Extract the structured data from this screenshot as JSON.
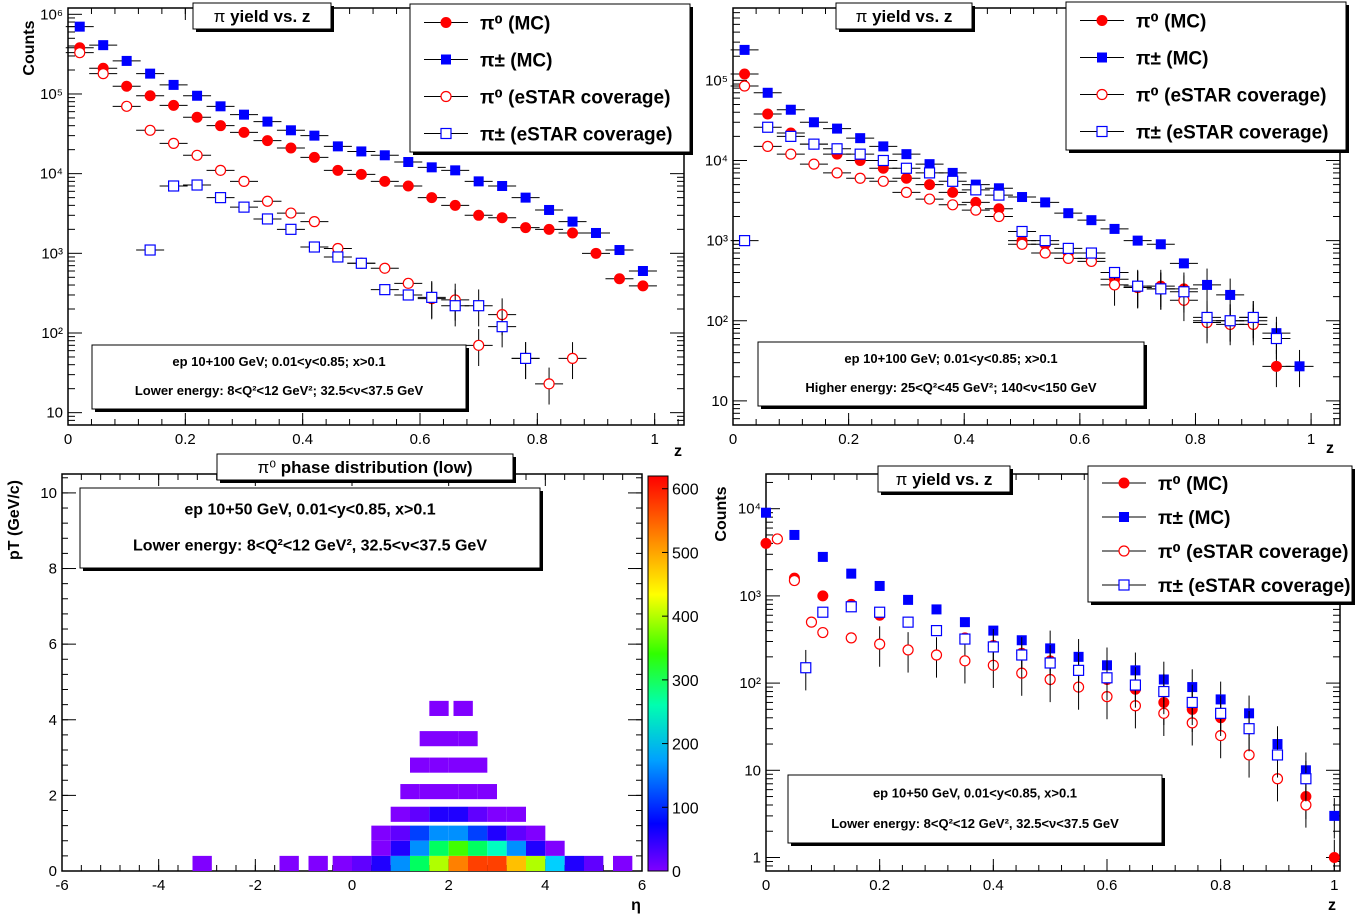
{
  "panels": [
    {
      "title_sym": "π",
      "title_text": " yield vs. z",
      "ylabel": "Counts",
      "xlabel": "z",
      "info_line1": "ep 10+100 GeV; 0.01<y<0.85; x>0.1",
      "info_line2": "Lower energy: 8<Q²<12 GeV²; 32.5<ν<37.5 GeV",
      "legend": [
        "π⁰ (MC)",
        "π± (MC)",
        "π⁰ (eSTAR coverage)",
        "π± (eSTAR coverage)"
      ]
    },
    {
      "title_sym": "π",
      "title_text": " yield vs. z",
      "ylabel": "",
      "xlabel": "z",
      "info_line1": "ep 10+100 GeV; 0.01<y<0.85; x>0.1",
      "info_line2": "Higher energy: 25<Q²<45 GeV²; 140<ν<150 GeV",
      "legend": [
        "π⁰ (MC)",
        "π± (MC)",
        "π⁰ (eSTAR coverage)",
        "π± (eSTAR coverage)"
      ]
    },
    {
      "title_sym": "π⁰",
      "title_text": " phase distribution (low)",
      "ylabel": "pT (GeV/c)",
      "xlabel": "η",
      "info_line1": "ep 10+50 GeV, 0.01<y<0.85, x>0.1",
      "info_line2": "Lower energy: 8<Q²<12 GeV², 32.5<ν<37.5 GeV"
    },
    {
      "title_sym": "π",
      "title_text": " yield vs. z",
      "ylabel": "Counts",
      "xlabel": "z",
      "info_line1": "ep 10+50 GeV, 0.01<y<0.85, x>0.1",
      "info_line2": "Lower energy: 8<Q²<12 GeV², 32.5<ν<37.5 GeV",
      "legend": [
        "π⁰ (MC)",
        "π± (MC)",
        "π⁰ (eSTAR coverage)",
        "π± (eSTAR coverage)"
      ]
    }
  ],
  "colors": {
    "red": "#ff0000",
    "blue": "#0000ff",
    "frame": "#000000"
  },
  "chart_data": [
    {
      "type": "scatter",
      "title": "π yield vs. z",
      "xlabel": "z",
      "ylabel": "Counts",
      "xlim": [
        0,
        1.05
      ],
      "ylim": [
        7,
        1200000
      ],
      "log_y": true,
      "x_ticks": [
        0,
        0.2,
        0.4,
        0.6,
        0.8,
        1
      ],
      "y_ticks": [
        10,
        100,
        1000,
        10000,
        100000,
        1000000
      ],
      "y_tick_labels": [
        "10",
        "10²",
        "10³",
        "10⁴",
        "10⁵",
        "10⁶"
      ],
      "series": [
        {
          "name": "π⁰ (MC)",
          "marker": "filled-circle",
          "color": "red",
          "x": [
            0.02,
            0.06,
            0.1,
            0.14,
            0.18,
            0.22,
            0.26,
            0.3,
            0.34,
            0.38,
            0.42,
            0.46,
            0.5,
            0.54,
            0.58,
            0.62,
            0.66,
            0.7,
            0.74,
            0.78,
            0.82,
            0.86,
            0.9,
            0.94,
            0.98
          ],
          "y": [
            380000,
            210000,
            125000,
            95000,
            72000,
            51000,
            40000,
            33000,
            26000,
            21000,
            16000,
            11000,
            9800,
            8000,
            7000,
            5000,
            4000,
            3000,
            2800,
            2100,
            2000,
            1800,
            1000,
            480,
            390
          ]
        },
        {
          "name": "π± (MC)",
          "marker": "filled-square",
          "color": "blue",
          "x": [
            0.02,
            0.06,
            0.1,
            0.14,
            0.18,
            0.22,
            0.26,
            0.3,
            0.34,
            0.38,
            0.42,
            0.46,
            0.5,
            0.54,
            0.58,
            0.62,
            0.66,
            0.7,
            0.74,
            0.78,
            0.82,
            0.86,
            0.9,
            0.94,
            0.98
          ],
          "y": [
            700000,
            410000,
            260000,
            180000,
            130000,
            95000,
            70000,
            55000,
            45000,
            35000,
            30000,
            22000,
            19000,
            17000,
            14000,
            12000,
            11000,
            8000,
            7000,
            5000,
            3500,
            2500,
            1800,
            1100,
            600
          ]
        },
        {
          "name": "π⁰ (eSTAR coverage)",
          "marker": "open-circle",
          "color": "red",
          "x": [
            0.02,
            0.06,
            0.1,
            0.14,
            0.18,
            0.22,
            0.26,
            0.3,
            0.34,
            0.38,
            0.42,
            0.46,
            0.5,
            0.54,
            0.58,
            0.62,
            0.66,
            0.7,
            0.74,
            0.78,
            0.82,
            0.86
          ],
          "y": [
            330000,
            180000,
            70000,
            35000,
            24000,
            17000,
            11000,
            8000,
            4500,
            3200,
            2500,
            1150,
            750,
            650,
            420,
            270,
            260,
            70,
            170,
            48,
            23,
            48
          ]
        },
        {
          "name": "π± (eSTAR coverage)",
          "marker": "open-square",
          "color": "blue",
          "x": [
            0.14,
            0.18,
            0.22,
            0.26,
            0.3,
            0.34,
            0.38,
            0.42,
            0.46,
            0.5,
            0.54,
            0.58,
            0.62,
            0.66,
            0.7,
            0.74,
            0.78
          ],
          "y": [
            1100,
            7000,
            7200,
            5000,
            3800,
            2700,
            2000,
            1200,
            900,
            750,
            350,
            300,
            280,
            220,
            220,
            120,
            48
          ]
        }
      ]
    },
    {
      "type": "scatter",
      "title": "π yield vs. z",
      "xlabel": "z",
      "ylabel": "",
      "xlim": [
        0,
        1.05
      ],
      "ylim": [
        5,
        800000
      ],
      "log_y": true,
      "x_ticks": [
        0,
        0.2,
        0.4,
        0.6,
        0.8,
        1
      ],
      "y_ticks": [
        10,
        100,
        1000,
        10000,
        100000
      ],
      "y_tick_labels": [
        "10",
        "10²",
        "10³",
        "10⁴",
        "10⁵"
      ],
      "series": [
        {
          "name": "π⁰ (MC)",
          "marker": "filled-circle",
          "color": "red",
          "x": [
            0.02,
            0.06,
            0.1,
            0.14,
            0.18,
            0.22,
            0.26,
            0.3,
            0.34,
            0.38,
            0.42,
            0.46,
            0.5,
            0.54,
            0.58,
            0.62,
            0.66,
            0.7,
            0.74,
            0.78,
            0.82,
            0.86,
            0.9,
            0.94
          ],
          "y": [
            120000,
            38000,
            22000,
            16000,
            12000,
            10000,
            8000,
            6000,
            5000,
            4000,
            3000,
            2500,
            1000,
            900,
            700,
            600,
            330,
            260,
            270,
            250,
            100,
            100,
            100,
            27
          ]
        },
        {
          "name": "π± (MC)",
          "marker": "filled-square",
          "color": "blue",
          "x": [
            0.02,
            0.06,
            0.1,
            0.14,
            0.18,
            0.22,
            0.26,
            0.3,
            0.34,
            0.38,
            0.42,
            0.46,
            0.5,
            0.54,
            0.58,
            0.62,
            0.66,
            0.7,
            0.74,
            0.78,
            0.82,
            0.86,
            0.9,
            0.94,
            0.98
          ],
          "y": [
            240000,
            70000,
            43000,
            30000,
            25000,
            19000,
            15000,
            12000,
            9000,
            7000,
            5000,
            4500,
            3500,
            3000,
            2200,
            1800,
            1400,
            1000,
            900,
            520,
            280,
            210,
            110,
            70,
            27
          ]
        },
        {
          "name": "π⁰ (eSTAR coverage)",
          "marker": "open-circle",
          "color": "red",
          "x": [
            0.02,
            0.06,
            0.1,
            0.14,
            0.18,
            0.22,
            0.26,
            0.3,
            0.34,
            0.38,
            0.42,
            0.46,
            0.5,
            0.54,
            0.58,
            0.62,
            0.66,
            0.7,
            0.74,
            0.78,
            0.82,
            0.86,
            0.9
          ],
          "y": [
            85000,
            15000,
            12000,
            9000,
            7000,
            6000,
            5500,
            4000,
            3300,
            2800,
            2400,
            2000,
            900,
            700,
            600,
            550,
            280,
            260,
            250,
            180,
            95,
            90,
            90
          ]
        },
        {
          "name": "π± (eSTAR coverage)",
          "marker": "open-square",
          "color": "blue",
          "x": [
            0.02,
            0.06,
            0.1,
            0.14,
            0.18,
            0.22,
            0.26,
            0.3,
            0.34,
            0.38,
            0.42,
            0.46,
            0.5,
            0.54,
            0.58,
            0.62,
            0.66,
            0.7,
            0.74,
            0.78,
            0.82,
            0.86,
            0.9,
            0.94
          ],
          "y": [
            1000,
            26000,
            20000,
            16000,
            14000,
            12000,
            10000,
            8000,
            7000,
            5500,
            4300,
            3700,
            1300,
            1000,
            800,
            700,
            400,
            270,
            250,
            230,
            110,
            100,
            110,
            60
          ]
        }
      ]
    },
    {
      "type": "heatmap",
      "title": "π⁰ phase distribution (low)",
      "xlabel": "η",
      "ylabel": "pT (GeV/c)",
      "xlim": [
        -6,
        6
      ],
      "ylim": [
        0,
        10.5
      ],
      "x_ticks": [
        -6,
        -4,
        -2,
        0,
        2,
        4,
        6
      ],
      "y_ticks": [
        0,
        2,
        4,
        6,
        8,
        10
      ],
      "z_range": [
        0,
        620
      ],
      "z_ticks": [
        0,
        100,
        200,
        300,
        400,
        500,
        600
      ],
      "cells": [
        [
          -3.1,
          0.2,
          5
        ],
        [
          -1.3,
          0.2,
          5
        ],
        [
          -0.7,
          0.2,
          5
        ],
        [
          -0.2,
          0.2,
          20
        ],
        [
          0.2,
          0.2,
          60
        ],
        [
          0.6,
          0.2,
          120
        ],
        [
          1.0,
          0.2,
          220
        ],
        [
          1.4,
          0.2,
          330
        ],
        [
          1.8,
          0.2,
          420
        ],
        [
          2.2,
          0.2,
          560
        ],
        [
          2.6,
          0.2,
          600
        ],
        [
          3.0,
          0.2,
          580
        ],
        [
          3.4,
          0.2,
          520
        ],
        [
          3.8,
          0.2,
          420
        ],
        [
          4.2,
          0.2,
          250
        ],
        [
          4.6,
          0.2,
          120
        ],
        [
          5.0,
          0.2,
          50
        ],
        [
          5.6,
          0.2,
          10
        ],
        [
          0.6,
          0.6,
          40
        ],
        [
          1.0,
          0.6,
          120
        ],
        [
          1.4,
          0.6,
          220
        ],
        [
          1.8,
          0.6,
          320
        ],
        [
          2.2,
          0.6,
          360
        ],
        [
          2.6,
          0.6,
          340
        ],
        [
          3.0,
          0.6,
          300
        ],
        [
          3.4,
          0.6,
          220
        ],
        [
          3.8,
          0.6,
          120
        ],
        [
          4.2,
          0.6,
          40
        ],
        [
          0.6,
          1.0,
          10
        ],
        [
          1.0,
          1.0,
          60
        ],
        [
          1.4,
          1.0,
          160
        ],
        [
          1.8,
          1.0,
          220
        ],
        [
          2.2,
          1.0,
          210
        ],
        [
          2.6,
          1.0,
          170
        ],
        [
          3.0,
          1.0,
          120
        ],
        [
          3.4,
          1.0,
          60
        ],
        [
          3.8,
          1.0,
          20
        ],
        [
          1.0,
          1.5,
          20
        ],
        [
          1.4,
          1.5,
          80
        ],
        [
          1.8,
          1.5,
          120
        ],
        [
          2.2,
          1.5,
          100
        ],
        [
          2.6,
          1.5,
          60
        ],
        [
          3.0,
          1.5,
          30
        ],
        [
          3.4,
          1.5,
          10
        ],
        [
          1.2,
          2.1,
          20
        ],
        [
          1.6,
          2.1,
          40
        ],
        [
          2.0,
          2.1,
          40
        ],
        [
          2.4,
          2.1,
          20
        ],
        [
          2.8,
          2.1,
          8
        ],
        [
          1.4,
          2.8,
          8
        ],
        [
          1.8,
          2.8,
          15
        ],
        [
          2.2,
          2.8,
          10
        ],
        [
          2.6,
          2.8,
          5
        ],
        [
          1.6,
          3.5,
          5
        ],
        [
          2.0,
          3.5,
          5
        ],
        [
          2.4,
          3.5,
          3
        ],
        [
          1.8,
          4.3,
          3
        ],
        [
          2.3,
          4.3,
          2
        ]
      ]
    },
    {
      "type": "scatter",
      "title": "π yield vs. z",
      "xlabel": "z",
      "ylabel": "Counts",
      "xlim": [
        0,
        1.01
      ],
      "ylim": [
        0.7,
        25000
      ],
      "log_y": true,
      "x_ticks": [
        0,
        0.2,
        0.4,
        0.6,
        0.8,
        1
      ],
      "y_ticks": [
        1,
        10,
        100,
        1000,
        10000
      ],
      "y_tick_labels": [
        "1",
        "10",
        "10²",
        "10³",
        "10⁴"
      ],
      "series": [
        {
          "name": "π⁰ (MC)",
          "marker": "filled-circle",
          "color": "red",
          "x": [
            0.0,
            0.05,
            0.1,
            0.15,
            0.2,
            0.25,
            0.3,
            0.35,
            0.4,
            0.45,
            0.5,
            0.55,
            0.6,
            0.65,
            0.7,
            0.75,
            0.8,
            0.85,
            0.9,
            0.95,
            1.0
          ],
          "y": [
            4000,
            1600,
            1000,
            800,
            600,
            500,
            400,
            330,
            270,
            220,
            180,
            140,
            110,
            85,
            60,
            50,
            40,
            30,
            15,
            5,
            1
          ]
        },
        {
          "name": "π± (MC)",
          "marker": "filled-square",
          "color": "blue",
          "x": [
            0.0,
            0.05,
            0.1,
            0.15,
            0.2,
            0.25,
            0.3,
            0.35,
            0.4,
            0.45,
            0.5,
            0.55,
            0.6,
            0.65,
            0.7,
            0.75,
            0.8,
            0.85,
            0.9,
            0.95,
            1.0
          ],
          "y": [
            9000,
            5000,
            2800,
            1800,
            1300,
            900,
            700,
            500,
            400,
            310,
            250,
            200,
            160,
            140,
            110,
            90,
            65,
            45,
            20,
            10,
            3
          ]
        },
        {
          "name": "π⁰ (eSTAR coverage)",
          "marker": "open-circle",
          "color": "red",
          "x": [
            0.02,
            0.05,
            0.08,
            0.1,
            0.15,
            0.2,
            0.25,
            0.3,
            0.35,
            0.4,
            0.45,
            0.5,
            0.55,
            0.6,
            0.65,
            0.7,
            0.75,
            0.8,
            0.85,
            0.9,
            0.95
          ],
          "y": [
            4500,
            1500,
            500,
            380,
            330,
            280,
            240,
            210,
            180,
            160,
            130,
            110,
            90,
            70,
            55,
            45,
            35,
            25,
            15,
            8,
            4
          ]
        },
        {
          "name": "π± (eSTAR coverage)",
          "marker": "open-square",
          "color": "blue",
          "x": [
            0.07,
            0.1,
            0.15,
            0.2,
            0.25,
            0.3,
            0.35,
            0.4,
            0.45,
            0.5,
            0.55,
            0.6,
            0.65,
            0.7,
            0.75,
            0.8,
            0.85,
            0.9,
            0.95
          ],
          "y": [
            150,
            650,
            750,
            650,
            500,
            400,
            320,
            260,
            210,
            170,
            140,
            115,
            95,
            80,
            60,
            45,
            30,
            15,
            8
          ]
        }
      ]
    }
  ]
}
